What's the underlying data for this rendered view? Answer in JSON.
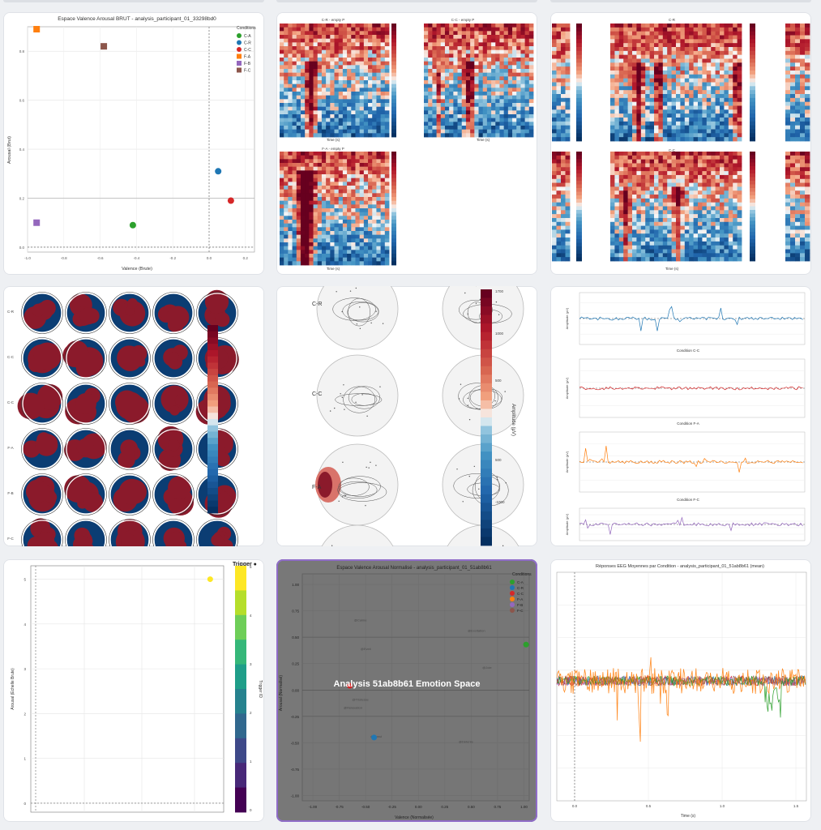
{
  "cards": {
    "scatter_brut": {
      "title": "Espace Valence Arousal BRUT - analysis_participant_01_33298bd0",
      "xlabel": "Valence (Brute)",
      "ylabel": "Arousal (Brut)",
      "legend_title": "Conditions",
      "ytick_labels": [
        "0.0",
        "0.2",
        "0.4",
        "0.6",
        "0.8"
      ],
      "xtick_labels": [
        "-1.0",
        "-0.8",
        "-0.6",
        "-0.4",
        "-0.2",
        "0.0",
        "0.2"
      ]
    },
    "tfr_a": {
      "titles": [
        "C-R - empty P",
        "C-C - empty P",
        "F-A - empty P"
      ],
      "xlabel": "Time (s)"
    },
    "tfr_b": {
      "titles": [
        "C-R",
        "C-C"
      ],
      "xlabel": "Time (s)"
    },
    "topo_grid": {
      "row_labels": [
        "C-R",
        "C-C",
        "C-C",
        "F-A",
        "F-B",
        "F-C"
      ]
    },
    "topo_big": {
      "row_labels": [
        "C-R",
        "C-C",
        "F-A"
      ],
      "colorbar_label": "Amplitude (µV)",
      "cb_ticks": [
        "1700",
        "1000",
        "500",
        "500",
        "-1000"
      ]
    },
    "erp_lines": {
      "titles": [
        "Condition C-C",
        "Condition F-A",
        "Condition F-C"
      ],
      "ylabel": "Amplitude (µV)"
    },
    "trigger": {
      "title": "Trigger ●",
      "ylabel": "Arousal (Echelle Brute)",
      "cb_label": "Trigger ID",
      "y_ticks": [
        "0",
        "1",
        "2",
        "3",
        "4",
        "5"
      ],
      "cb_ticks": [
        "5",
        "4",
        "3",
        "2",
        "1",
        "0"
      ]
    },
    "normalized": {
      "title": "Espace Valence Arousal Normalisé - analysis_participant_01_51ab8b61",
      "overlay": "Analysis 51ab8b61 Emotion Space",
      "xlabel": "Valence (Normalisée)",
      "ylabel": "Arousal (Normalisé)",
      "legend_title": "Conditions",
      "y_ticks": [
        "1.00",
        "0.75",
        "0.50",
        "0.25",
        "0.00",
        "-0.25",
        "-0.50",
        "-0.75",
        "-1.00"
      ],
      "x_ticks": [
        "-1.00",
        "-0.75",
        "-0.50",
        "-0.25",
        "0.00",
        "0.25",
        "0.50",
        "0.75",
        "1.00"
      ],
      "quadrant_words": [
        "@Calme",
        "@Eveil",
        "@Excitation",
        "@Joie",
        "@Tristesse",
        "@Relaxation",
        "@Ennui",
        "@Détente"
      ]
    },
    "eeg": {
      "title": "Réponses EEG Moyennes par Condition - analysis_participant_01_51ab8b61 (mean)",
      "xlabel": "Time (s)",
      "x_ticks": [
        "0.0",
        "0.5",
        "1.0",
        "1.5"
      ]
    }
  },
  "colors": {
    "C-A": "#2ca02c",
    "C-R": "#1f77b4",
    "C-C": "#d62728",
    "F-A": "#ff7f0e",
    "F-B": "#9467bd",
    "F-C": "#8c564b"
  },
  "chart_data": [
    {
      "type": "scatter",
      "title": "Espace Valence Arousal BRUT - analysis_participant_01_33298bd0",
      "xlabel": "Valence (Brute)",
      "ylabel": "Arousal (Brut)",
      "xlim": [
        -1.0,
        0.25
      ],
      "ylim": [
        -0.02,
        0.9
      ],
      "series": [
        {
          "name": "C-A",
          "x": [
            -0.42
          ],
          "y": [
            0.09
          ]
        },
        {
          "name": "C-R",
          "x": [
            0.05
          ],
          "y": [
            0.31
          ]
        },
        {
          "name": "C-C",
          "x": [
            0.12
          ],
          "y": [
            0.19
          ]
        },
        {
          "name": "F-A",
          "x": [
            -0.95
          ],
          "y": [
            0.89
          ]
        },
        {
          "name": "F-B",
          "x": [
            -0.95
          ],
          "y": [
            0.1
          ]
        },
        {
          "name": "F-C",
          "x": [
            -0.58
          ],
          "y": [
            0.82
          ]
        }
      ],
      "legend": "top-right",
      "grid": true
    },
    {
      "type": "scatter",
      "title": "Espace Valence Arousal Normalisé - analysis_participant_01_51ab8b61",
      "xlabel": "Valence (Normalisée)",
      "ylabel": "Arousal (Normalisé)",
      "xlim": [
        -1.1,
        1.05
      ],
      "ylim": [
        -1.05,
        1.1
      ],
      "series": [
        {
          "name": "C-A",
          "x": [
            1.02
          ],
          "y": [
            0.43
          ]
        },
        {
          "name": "C-R",
          "x": [
            -0.42
          ],
          "y": [
            -0.45
          ]
        },
        {
          "name": "C-C",
          "x": [
            -0.65
          ],
          "y": [
            0.04
          ]
        },
        {
          "name": "F-A",
          "x": [],
          "y": []
        },
        {
          "name": "F-B",
          "x": [],
          "y": []
        },
        {
          "name": "F-C",
          "x": [],
          "y": []
        }
      ],
      "legend": "top-right",
      "grid": true
    },
    {
      "type": "scatter",
      "title": "Trigger ●",
      "ylabel": "Arousal (Echelle Brute)",
      "ylim": [
        -0.2,
        5.3
      ],
      "series": [
        {
          "name": "Trigger",
          "x": [
            0.93
          ],
          "y": [
            5.0
          ],
          "trigger": 5
        }
      ],
      "colorbar": {
        "label": "Trigger ID",
        "range": [
          0,
          5
        ]
      }
    }
  ]
}
